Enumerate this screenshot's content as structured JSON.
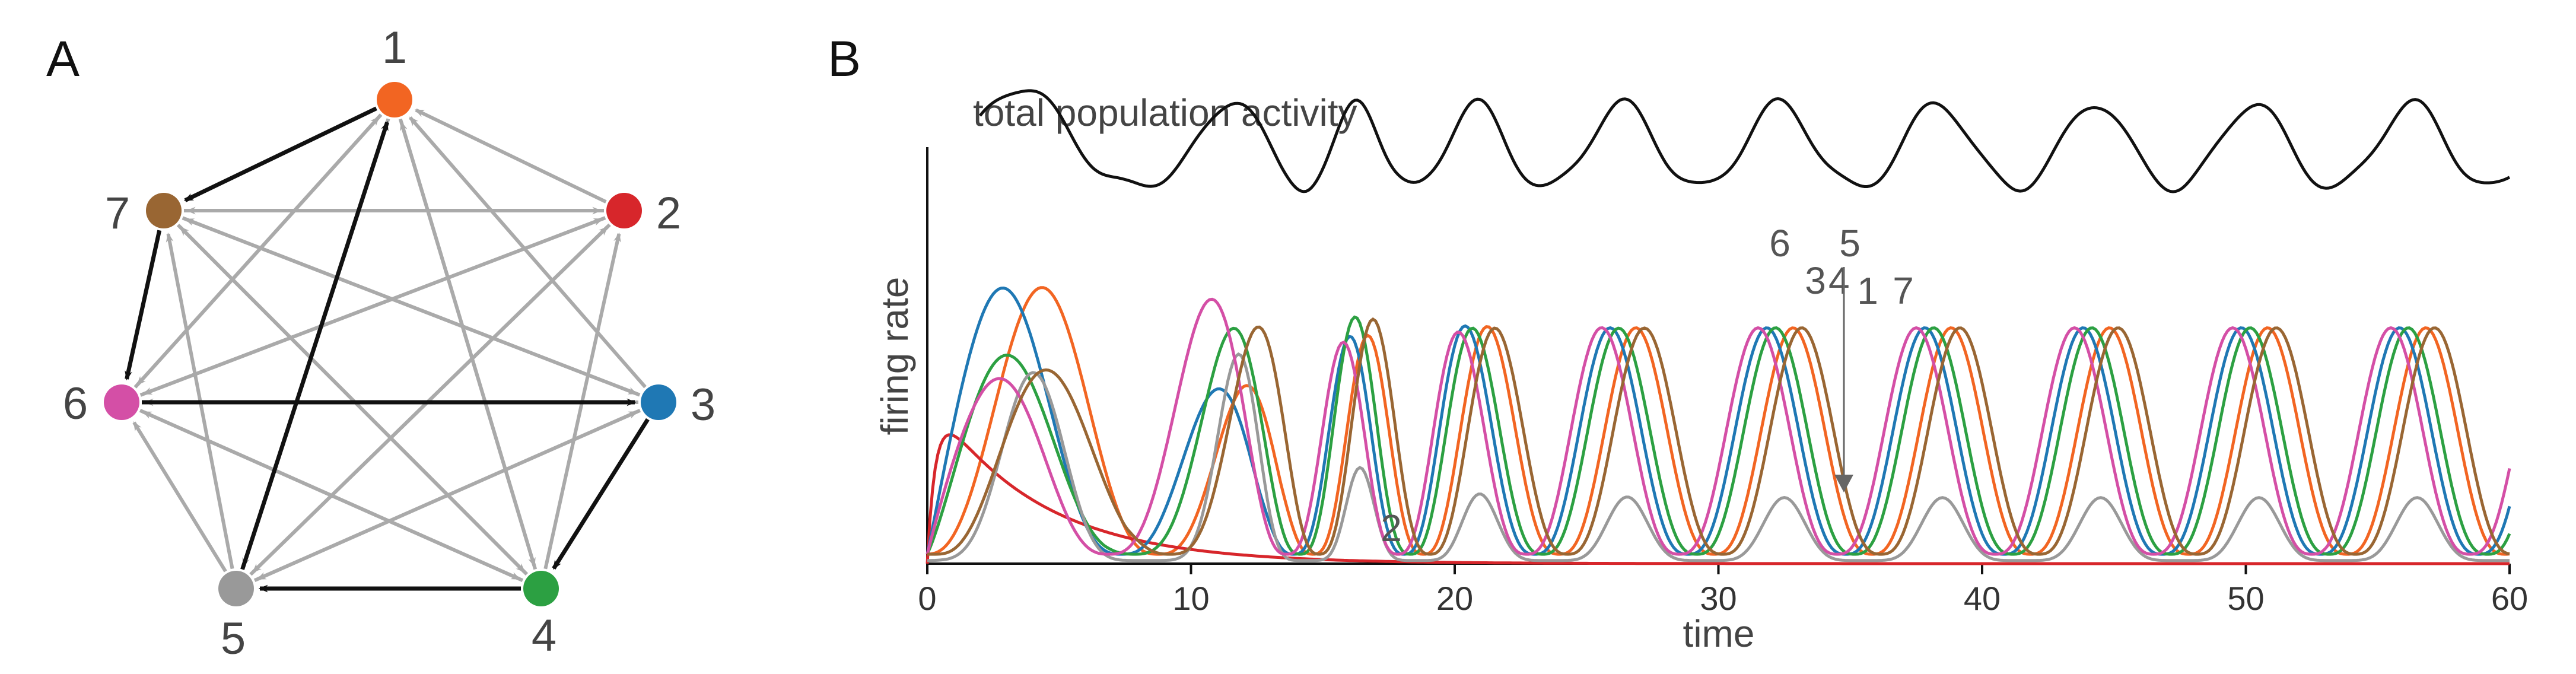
{
  "panels": {
    "a_label": "A",
    "b_label": "B"
  },
  "network": {
    "nodes": [
      {
        "id": "1",
        "color": "#f26522"
      },
      {
        "id": "2",
        "color": "#d7262b"
      },
      {
        "id": "3",
        "color": "#1f78b4"
      },
      {
        "id": "4",
        "color": "#2ca042"
      },
      {
        "id": "5",
        "color": "#999999"
      },
      {
        "id": "6",
        "color": "#d44fa6"
      },
      {
        "id": "7",
        "color": "#996633"
      }
    ],
    "cycle_edges": [
      [
        "1",
        "7"
      ],
      [
        "7",
        "6"
      ],
      [
        "6",
        "3"
      ],
      [
        "3",
        "4"
      ],
      [
        "4",
        "5"
      ],
      [
        "5",
        "1"
      ]
    ],
    "gray_edges": [
      [
        "2",
        "1"
      ],
      [
        "3",
        "1"
      ],
      [
        "4",
        "1"
      ],
      [
        "6",
        "1"
      ],
      [
        "7",
        "2"
      ],
      [
        "6",
        "2"
      ],
      [
        "5",
        "2"
      ],
      [
        "4",
        "2"
      ],
      [
        "7",
        "3"
      ],
      [
        "5",
        "3"
      ],
      [
        "1",
        "4"
      ],
      [
        "7",
        "4"
      ],
      [
        "6",
        "4"
      ],
      [
        "3",
        "5"
      ],
      [
        "2",
        "5"
      ],
      [
        "1",
        "6"
      ],
      [
        "2",
        "6"
      ],
      [
        "4",
        "6"
      ],
      [
        "5",
        "6"
      ],
      [
        "2",
        "7"
      ],
      [
        "3",
        "7"
      ],
      [
        "4",
        "7"
      ],
      [
        "5",
        "7"
      ],
      [
        "3",
        "6"
      ],
      [
        "1",
        "5"
      ]
    ],
    "edge_colors": {
      "cycle": "#111111",
      "other": "#aaaaaa"
    }
  },
  "chart_data": {
    "type": "line",
    "title": "total population activity",
    "xlabel": "time",
    "ylabel": "firing rate",
    "xlim": [
      0,
      60
    ],
    "x_ticks": [
      "0",
      "10",
      "20",
      "30",
      "40",
      "50",
      "60"
    ],
    "series": [
      {
        "name": "1",
        "color": "#f26522"
      },
      {
        "name": "2",
        "color": "#d7262b"
      },
      {
        "name": "3",
        "color": "#1f78b4"
      },
      {
        "name": "4",
        "color": "#2ca042"
      },
      {
        "name": "5",
        "color": "#999999"
      },
      {
        "name": "6",
        "color": "#d44fa6"
      },
      {
        "name": "7",
        "color": "#996633"
      }
    ],
    "annotations": [
      "6",
      "3",
      "4",
      "5",
      "1",
      "7",
      "2"
    ],
    "total_color": "#111111"
  }
}
